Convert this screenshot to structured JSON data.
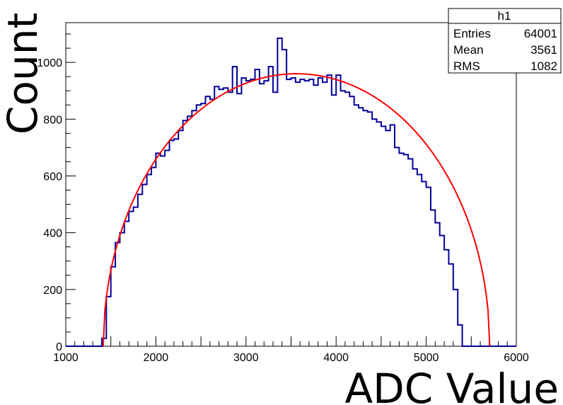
{
  "chart_data": {
    "type": "histogram",
    "title": "",
    "xlabel": "ADC Value",
    "ylabel": "Count",
    "xlim": [
      1000,
      6000
    ],
    "ylim": [
      0,
      1140
    ],
    "x_ticks": [
      1000,
      2000,
      3000,
      4000,
      5000,
      6000
    ],
    "x_tick_labels": [
      "1000",
      "2000",
      "3000",
      "4000",
      "5000",
      "6000"
    ],
    "y_ticks": [
      0,
      200,
      400,
      600,
      800,
      1000
    ],
    "y_tick_labels": [
      "0",
      "200",
      "400",
      "600",
      "800",
      "1000"
    ],
    "grid": false,
    "bin_width": 50,
    "bins_start": 1000,
    "histogram_counts": [
      0,
      0,
      0,
      0,
      0,
      0,
      0,
      0,
      28,
      175,
      280,
      365,
      400,
      440,
      475,
      490,
      535,
      570,
      605,
      630,
      680,
      670,
      690,
      725,
      730,
      760,
      795,
      810,
      830,
      850,
      855,
      880,
      870,
      915,
      905,
      910,
      895,
      985,
      890,
      945,
      935,
      940,
      975,
      925,
      935,
      985,
      895,
      1085,
      1045,
      940,
      945,
      930,
      940,
      935,
      940,
      920,
      945,
      930,
      955,
      885,
      955,
      900,
      895,
      880,
      850,
      840,
      830,
      825,
      800,
      790,
      775,
      760,
      780,
      700,
      680,
      675,
      660,
      625,
      605,
      580,
      560,
      480,
      435,
      390,
      340,
      290,
      200,
      75,
      0,
      0,
      0,
      0,
      0,
      0,
      0,
      0,
      0,
      0,
      0,
      0
    ],
    "histogram_color": "#000099",
    "fit": {
      "type": "semicircle",
      "x_start": 1415,
      "x_end": 5705,
      "center": 3560,
      "half_width": 2145,
      "peak": 960,
      "color": "#ff0000"
    },
    "stats_box": {
      "name": "h1",
      "rows": [
        {
          "label": "Entries",
          "value": "64001"
        },
        {
          "label": "Mean",
          "value": "3561"
        },
        {
          "label": "RMS",
          "value": "1082"
        }
      ]
    }
  }
}
